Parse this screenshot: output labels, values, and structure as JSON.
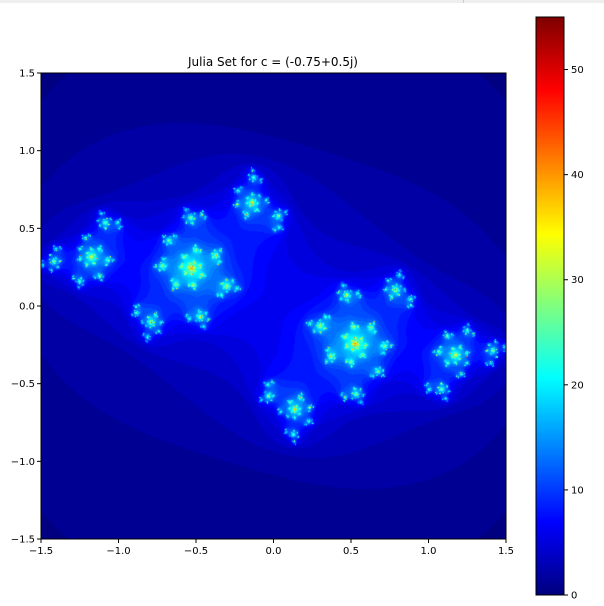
{
  "chart_data": {
    "type": "heatmap",
    "title": "Julia Set for c = (-0.75+0.5j)",
    "c": {
      "re": -0.75,
      "im": 0.5
    },
    "max_iter": 55,
    "colormap": "jet",
    "xlim": [
      -1.5,
      1.5
    ],
    "ylim": [
      -1.5,
      1.5
    ],
    "xticks": [
      -1.5,
      -1.0,
      -0.5,
      0.0,
      0.5,
      1.0,
      1.5
    ],
    "xtick_labels": [
      "−1.5",
      "−1.0",
      "−0.5",
      "0.0",
      "0.5",
      "1.0",
      "1.5"
    ],
    "yticks": [
      1.5,
      1.0,
      0.5,
      0.0,
      -0.5,
      -1.0,
      -1.5
    ],
    "ytick_labels": [
      "1.5",
      "1.0",
      "0.5",
      "0.0",
      "−0.5",
      "−1.0",
      "−1.5"
    ],
    "colorbar": {
      "range": [
        0,
        55
      ],
      "ticks": [
        0,
        10,
        20,
        30,
        40,
        50
      ],
      "tick_labels": [
        "0",
        "10",
        "20",
        "30",
        "40",
        "50"
      ]
    },
    "grid": false
  }
}
